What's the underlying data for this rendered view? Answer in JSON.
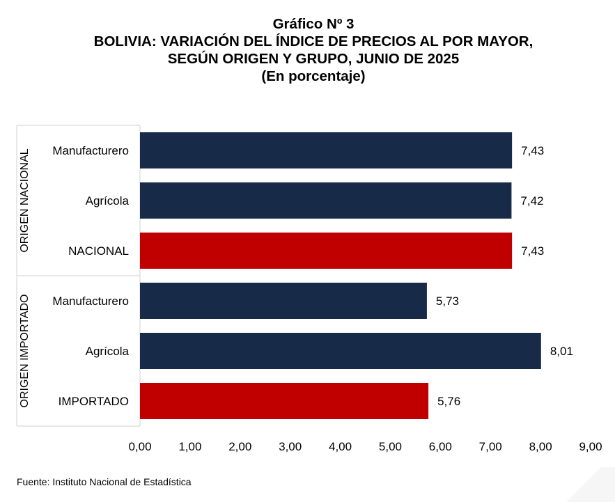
{
  "title": {
    "line1": "Gráfico Nº 3",
    "line2": "BOLIVIA: VARIACIÓN DEL ÍNDICE DE PRECIOS AL POR MAYOR,",
    "line3": "SEGÚN ORIGEN Y GRUPO, JUNIO DE 2025",
    "line4": "(En porcentaje)"
  },
  "source": "Fuente: Instituto Nacional de Estadística",
  "colors": {
    "group": "#172b49",
    "total": "#c00000"
  },
  "chart_data": {
    "type": "bar",
    "orientation": "horizontal",
    "groups": [
      {
        "label": "ORIGEN NACIONAL",
        "bars": [
          {
            "label": "Manufacturero",
            "value": 7.43,
            "value_label": "7,43",
            "kind": "group"
          },
          {
            "label": "Agrícola",
            "value": 7.42,
            "value_label": "7,42",
            "kind": "group"
          },
          {
            "label": "NACIONAL",
            "value": 7.43,
            "value_label": "7,43",
            "kind": "total"
          }
        ]
      },
      {
        "label": "ORIGEN IMPORTADO",
        "bars": [
          {
            "label": "Manufacturero",
            "value": 5.73,
            "value_label": "5,73",
            "kind": "group"
          },
          {
            "label": "Agrícola",
            "value": 8.01,
            "value_label": "8,01",
            "kind": "group"
          },
          {
            "label": "IMPORTADO",
            "value": 5.76,
            "value_label": "5,76",
            "kind": "total"
          }
        ]
      }
    ],
    "xlim": [
      0,
      9
    ],
    "xticks": [
      "0,00",
      "1,00",
      "2,00",
      "3,00",
      "4,00",
      "5,00",
      "6,00",
      "7,00",
      "8,00",
      "9,00"
    ],
    "grid": false,
    "legend": "none"
  }
}
